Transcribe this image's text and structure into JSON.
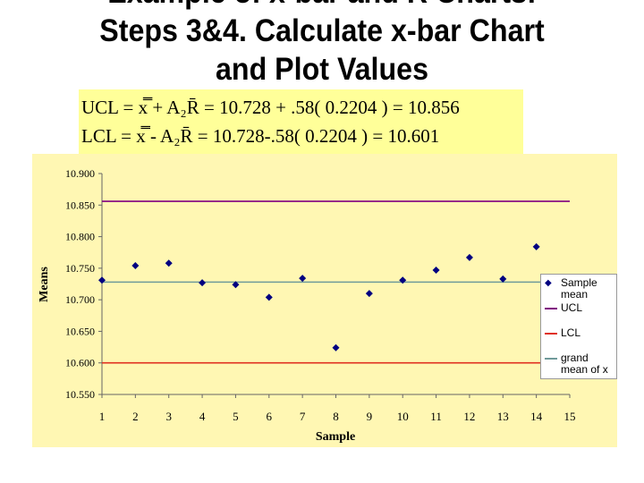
{
  "slide": {
    "title_lines": [
      "Example of x-bar and R Charts:",
      "Steps 3&4. Calculate x-bar Chart",
      "and Plot Values"
    ],
    "formula": {
      "ucl": "UCL = x̿ + A₂R̄ = 10.728 + .58( 0.2204 ) = 10.856",
      "lcl": "LCL = x̿ - A₂R̄ = 10.728-.58( 0.2204 ) = 10.601"
    }
  },
  "chart_data": {
    "type": "scatter",
    "xlabel": "Sample",
    "ylabel": "Means",
    "xlim": [
      1,
      15
    ],
    "ylim": [
      10.55,
      10.9
    ],
    "xticks": [
      1,
      2,
      3,
      4,
      5,
      6,
      7,
      8,
      9,
      10,
      11,
      12,
      13,
      14,
      15
    ],
    "yticks": [
      "10.550",
      "10.600",
      "10.650",
      "10.700",
      "10.750",
      "10.800",
      "10.850",
      "10.900"
    ],
    "grid": false,
    "legend_placement": "right",
    "series": [
      {
        "name": "Sample mean",
        "kind": "points",
        "color": "#000080",
        "x": [
          1,
          2,
          3,
          4,
          5,
          6,
          7,
          8,
          9,
          10,
          11,
          12,
          13,
          14
        ],
        "y": [
          10.731,
          10.754,
          10.758,
          10.727,
          10.724,
          10.704,
          10.734,
          10.624,
          10.71,
          10.731,
          10.747,
          10.767,
          10.733,
          10.784
        ]
      },
      {
        "name": "UCL",
        "kind": "line",
        "color": "#800080",
        "x": [
          1,
          15
        ],
        "y": [
          10.856,
          10.856
        ]
      },
      {
        "name": "LCL",
        "kind": "line",
        "color": "#e03020",
        "x": [
          1,
          15
        ],
        "y": [
          10.6,
          10.6
        ]
      },
      {
        "name": "grand mean of x",
        "kind": "line",
        "color": "#6f9a9a",
        "x": [
          1,
          15
        ],
        "y": [
          10.728,
          10.728
        ]
      }
    ]
  }
}
